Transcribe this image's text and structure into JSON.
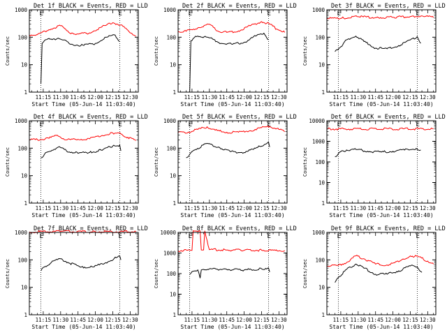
{
  "chart_data": [
    {
      "type": "line",
      "title": "Det 1f BLACK = Events, RED = LLD",
      "xlabel": "Start Time (05-Jun-14 11:03:40)",
      "ylabel": "Counts/sec",
      "x_ticks": [
        "11:15",
        "11:30",
        "11:45",
        "12:00",
        "12:15",
        "12:30"
      ],
      "ylim": [
        1,
        1000
      ],
      "y_scale": "log",
      "y_ticks": [
        "1",
        "10",
        "100",
        "1000"
      ],
      "markers": [
        {
          "label": "E",
          "x": "11:13"
        },
        {
          "label": "E",
          "x": "12:21"
        }
      ],
      "series": [
        {
          "color": "#ff0000",
          "x": [
            "11:03",
            "11:10",
            "11:20",
            "11:30",
            "11:37",
            "11:45",
            "11:55",
            "12:05",
            "12:15",
            "12:22",
            "12:28",
            "12:35"
          ],
          "y": [
            120,
            125,
            190,
            260,
            150,
            130,
            145,
            230,
            340,
            280,
            180,
            110
          ]
        },
        {
          "color": "#000000",
          "x": [
            "11:13",
            "11:14",
            "11:16",
            "11:20",
            "11:30",
            "11:40",
            "11:50",
            "12:00",
            "12:10",
            "12:17",
            "12:21"
          ],
          "y": [
            2,
            60,
            75,
            90,
            85,
            55,
            50,
            60,
            100,
            120,
            70
          ]
        }
      ]
    },
    {
      "type": "line",
      "title": "Det 2f BLACK = Events, RED = LLD",
      "xlabel": "Start Time (05-Jun-14 11:03:40)",
      "ylabel": "Counts/sec",
      "x_ticks": [
        "11:15",
        "11:30",
        "11:45",
        "12:00",
        "12:15",
        "12:30"
      ],
      "ylim": [
        1,
        1000
      ],
      "y_scale": "log",
      "y_ticks": [
        "1",
        "10",
        "100",
        "1000"
      ],
      "markers": [
        {
          "label": "E",
          "x": "11:13"
        },
        {
          "label": "E",
          "x": "12:21"
        }
      ],
      "series": [
        {
          "color": "#ff0000",
          "x": [
            "11:03",
            "11:10",
            "11:20",
            "11:30",
            "11:37",
            "11:45",
            "11:55",
            "12:05",
            "12:15",
            "12:22",
            "12:28",
            "12:35"
          ],
          "y": [
            160,
            165,
            220,
            300,
            170,
            150,
            170,
            260,
            370,
            300,
            200,
            150
          ]
        },
        {
          "color": "#000000",
          "x": [
            "11:13",
            "11:14",
            "11:16",
            "11:20",
            "11:30",
            "11:40",
            "11:50",
            "12:00",
            "12:10",
            "12:17",
            "12:21"
          ],
          "y": [
            1,
            75,
            90,
            110,
            95,
            60,
            55,
            65,
            110,
            140,
            80
          ]
        }
      ]
    },
    {
      "type": "line",
      "title": "Det 3f BLACK = Events, RED = LLD",
      "xlabel": "Start Time (05-Jun-14 11:03:40)",
      "ylabel": "Counts/sec",
      "x_ticks": [
        "11:15",
        "11:30",
        "11:45",
        "12:00",
        "12:15",
        "12:30"
      ],
      "ylim": [
        1,
        1000
      ],
      "y_scale": "log",
      "y_ticks": [
        "1",
        "10",
        "100",
        "1000"
      ],
      "markers": [
        {
          "label": "E",
          "x": "11:13"
        },
        {
          "label": "E",
          "x": "12:21"
        }
      ],
      "series": [
        {
          "color": "#ff0000",
          "x": [
            "11:03",
            "11:15",
            "11:30",
            "11:45",
            "12:00",
            "12:15",
            "12:25",
            "12:35"
          ],
          "y": [
            480,
            490,
            560,
            520,
            530,
            570,
            600,
            520
          ]
        },
        {
          "color": "#000000",
          "x": [
            "11:10",
            "11:15",
            "11:20",
            "11:28",
            "11:35",
            "11:45",
            "11:55",
            "12:05",
            "12:15",
            "12:21",
            "12:24"
          ],
          "y": [
            30,
            45,
            80,
            110,
            70,
            40,
            38,
            50,
            80,
            105,
            60
          ]
        }
      ]
    },
    {
      "type": "line",
      "title": "Det 4f BLACK = Events, RED = LLD",
      "xlabel": "Start Time (05-Jun-14 11:03:40)",
      "ylabel": "Counts/sec",
      "x_ticks": [
        "11:15",
        "11:30",
        "11:45",
        "12:00",
        "12:15",
        "12:30"
      ],
      "ylim": [
        1,
        1000
      ],
      "y_scale": "log",
      "y_ticks": [
        "1",
        "10",
        "100",
        "1000"
      ],
      "markers": [
        {
          "label": "E",
          "x": "11:13"
        },
        {
          "label": "E",
          "x": "12:21"
        }
      ],
      "series": [
        {
          "color": "#ff0000",
          "x": [
            "11:03",
            "11:10",
            "11:20",
            "11:27",
            "11:35",
            "11:45",
            "11:55",
            "12:05",
            "12:15",
            "12:22",
            "12:28",
            "12:35"
          ],
          "y": [
            200,
            205,
            230,
            300,
            200,
            210,
            220,
            280,
            360,
            330,
            250,
            190
          ]
        },
        {
          "color": "#000000",
          "x": [
            "11:13",
            "11:16",
            "11:20",
            "11:28",
            "11:35",
            "11:45",
            "11:55",
            "12:05",
            "12:15",
            "12:21",
            "12:22"
          ],
          "y": [
            45,
            60,
            75,
            110,
            80,
            65,
            70,
            85,
            120,
            130,
            80
          ]
        }
      ]
    },
    {
      "type": "line",
      "title": "Det 5f BLACK = Events, RED = LLD",
      "xlabel": "Start Time (05-Jun-14 11:03:40)",
      "ylabel": "Counts/sec",
      "x_ticks": [
        "11:15",
        "11:30",
        "11:45",
        "12:00",
        "12:15",
        "12:30"
      ],
      "ylim": [
        1,
        1000
      ],
      "y_scale": "log",
      "y_ticks": [
        "1",
        "10",
        "100",
        "1000"
      ],
      "markers": [
        {
          "label": "E",
          "x": "11:13"
        },
        {
          "label": "E",
          "x": "12:21"
        }
      ],
      "series": [
        {
          "color": "#ff0000",
          "x": [
            "11:03",
            "11:12",
            "11:20",
            "11:28",
            "11:35",
            "11:45",
            "11:55",
            "12:05",
            "12:15",
            "12:22",
            "12:30",
            "12:35"
          ],
          "y": [
            380,
            390,
            480,
            600,
            450,
            380,
            380,
            430,
            560,
            620,
            480,
            400
          ]
        },
        {
          "color": "#000000",
          "x": [
            "11:10",
            "11:13",
            "11:18",
            "11:28",
            "11:38",
            "11:48",
            "11:58",
            "12:08",
            "12:18",
            "12:21",
            "12:22"
          ],
          "y": [
            45,
            60,
            90,
            150,
            110,
            75,
            70,
            90,
            140,
            170,
            110
          ]
        }
      ]
    },
    {
      "type": "line",
      "title": "Det 6f BLACK = Events, RED = LLD",
      "xlabel": "Start Time (05-Jun-14 11:03:40)",
      "ylabel": "Counts/sec",
      "x_ticks": [
        "11:15",
        "11:30",
        "11:45",
        "12:00",
        "12:15",
        "12:30"
      ],
      "ylim": [
        1,
        10000
      ],
      "y_scale": "log",
      "y_ticks": [
        "1",
        "10",
        "100",
        "1000",
        "10000"
      ],
      "markers": [
        {
          "label": "E",
          "x": "11:13"
        },
        {
          "label": "E",
          "x": "12:21"
        }
      ],
      "series": [
        {
          "color": "#ff0000",
          "x": [
            "11:03",
            "12:35"
          ],
          "y": [
            4000,
            4000
          ]
        },
        {
          "color": "#000000",
          "x": [
            "11:10",
            "11:14",
            "11:20",
            "11:30",
            "11:40",
            "11:50",
            "12:00",
            "12:10",
            "12:20",
            "12:24"
          ],
          "y": [
            180,
            300,
            380,
            400,
            320,
            300,
            330,
            380,
            450,
            380
          ]
        }
      ]
    },
    {
      "type": "line",
      "title": "Det 7f BLACK = Events, RED = LLD",
      "xlabel": "Start Time (05-Jun-14 11:03:40)",
      "ylabel": "Counts/sec",
      "x_ticks": [
        "11:15",
        "11:30",
        "11:45",
        "12:00",
        "12:15",
        "12:30"
      ],
      "ylim": [
        1,
        1000
      ],
      "y_scale": "log",
      "y_ticks": [
        "1",
        "10",
        "100",
        "1000"
      ],
      "markers": [
        {
          "label": "E",
          "x": "11:13"
        },
        {
          "label": "E",
          "x": "12:21"
        }
      ],
      "series": [
        {
          "color": "#ff0000",
          "x": [
            "11:03",
            "11:30",
            "12:00",
            "12:35"
          ],
          "y": [
            1050,
            1080,
            1070,
            1060
          ]
        },
        {
          "color": "#000000",
          "x": [
            "11:13",
            "11:16",
            "11:22",
            "11:30",
            "11:38",
            "11:48",
            "11:58",
            "12:08",
            "12:18",
            "12:21",
            "12:22"
          ],
          "y": [
            40,
            55,
            80,
            110,
            75,
            55,
            55,
            75,
            120,
            140,
            100
          ]
        }
      ]
    },
    {
      "type": "line",
      "title": "Det 8f BLACK = Events, RED = LLD",
      "xlabel": "Start Time (05-Jun-14 11:03:40)",
      "ylabel": "Counts/sec",
      "x_ticks": [
        "11:15",
        "11:30",
        "11:45",
        "12:00",
        "12:15",
        "12:30"
      ],
      "ylim": [
        1,
        10000
      ],
      "y_scale": "log",
      "y_ticks": [
        "1",
        "10",
        "100",
        "1000",
        "10000"
      ],
      "markers": [
        {
          "label": "E",
          "x": "11:13"
        },
        {
          "label": "E",
          "x": "12:21"
        }
      ],
      "series": [
        {
          "color": "#ff0000",
          "x": [
            "11:03",
            "11:15",
            "11:16",
            "11:22",
            "11:23",
            "11:25",
            "11:26",
            "11:30",
            "11:45",
            "12:00",
            "12:15",
            "12:35"
          ],
          "y": [
            1300,
            1350,
            12000,
            12000,
            1400,
            1400,
            12000,
            1450,
            1400,
            1350,
            1380,
            1300
          ]
        },
        {
          "color": "#000000",
          "x": [
            "11:13",
            "11:16",
            "11:20",
            "11:22",
            "11:23",
            "11:25",
            "11:30",
            "11:45",
            "12:00",
            "12:15",
            "12:21",
            "12:22"
          ],
          "y": [
            90,
            130,
            150,
            60,
            150,
            160,
            170,
            160,
            150,
            170,
            190,
            120
          ]
        }
      ]
    },
    {
      "type": "line",
      "title": "Det 9f BLACK = Events, RED = LLD",
      "xlabel": "Start Time (05-Jun-14 11:03:40)",
      "ylabel": "Counts/sec",
      "x_ticks": [
        "11:15",
        "11:30",
        "11:45",
        "12:00",
        "12:15",
        "12:30"
      ],
      "ylim": [
        1,
        1000
      ],
      "y_scale": "log",
      "y_ticks": [
        "1",
        "10",
        "100",
        "1000"
      ],
      "markers": [
        {
          "label": "E",
          "x": "11:13"
        },
        {
          "label": "E",
          "x": "12:21"
        }
      ],
      "series": [
        {
          "color": "#ff0000",
          "x": [
            "11:03",
            "11:12",
            "11:20",
            "11:28",
            "11:35",
            "11:45",
            "11:55",
            "12:05",
            "12:15",
            "12:22",
            "12:30",
            "12:35"
          ],
          "y": [
            60,
            62,
            80,
            140,
            110,
            70,
            65,
            85,
            140,
            130,
            90,
            70
          ]
        },
        {
          "color": "#000000",
          "x": [
            "11:10",
            "11:14",
            "11:20",
            "11:28",
            "11:35",
            "11:45",
            "11:55",
            "12:05",
            "12:15",
            "12:21",
            "12:25"
          ],
          "y": [
            15,
            25,
            45,
            70,
            50,
            30,
            30,
            40,
            60,
            55,
            35
          ]
        }
      ]
    }
  ]
}
